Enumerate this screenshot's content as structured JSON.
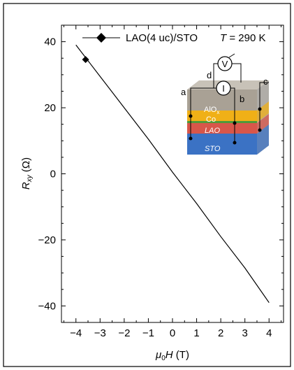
{
  "chart_data": {
    "type": "line",
    "xlabel_parts": [
      "μ",
      "0",
      "H",
      " (T)"
    ],
    "ylabel_parts": [
      "R",
      "xy",
      " (Ω)"
    ],
    "xlim": [
      -4.6,
      4.6
    ],
    "ylim": [
      -45,
      45
    ],
    "x_ticks": [
      -4,
      -3,
      -2,
      -1,
      0,
      1,
      2,
      3,
      4
    ],
    "x_tick_labels": [
      "−4",
      "−3",
      "−2",
      "−1",
      "0",
      "1",
      "2",
      "3",
      "4"
    ],
    "y_ticks": [
      -40,
      -20,
      0,
      20,
      40
    ],
    "y_tick_labels": [
      "−40",
      "−20",
      "0",
      "20",
      "40"
    ],
    "series": [
      {
        "name": "LAO(4 uc)/STO",
        "color": "#000000",
        "marker": "diamond",
        "x": [
          -4,
          -3,
          -2,
          -1,
          0,
          1,
          2,
          3,
          4
        ],
        "y": [
          39,
          29.5,
          20,
          10.5,
          0.5,
          -9,
          -19,
          -28.5,
          -39
        ],
        "marker_points": [
          {
            "x": -3.6,
            "y": 34.6
          }
        ]
      }
    ],
    "legend": {
      "position": "top",
      "label": "LAO(4 uc)/STO",
      "temperature_parts": [
        "T",
        " = 290 K"
      ]
    },
    "grid": false
  },
  "inset": {
    "layers": [
      {
        "label": "AlO",
        "subscript": "x",
        "color": "#a9a195"
      },
      {
        "label": "Co",
        "subscript": "",
        "color": "#f0b017"
      },
      {
        "label": "LAO",
        "subscript": "",
        "color": "#d8564a"
      },
      {
        "label": "STO",
        "subscript": "",
        "color": "#3b72c4"
      }
    ],
    "green_stripe_color": "#4e9a3a",
    "contacts": [
      "a",
      "b",
      "c",
      "d"
    ],
    "meters": [
      "V",
      "I"
    ]
  }
}
